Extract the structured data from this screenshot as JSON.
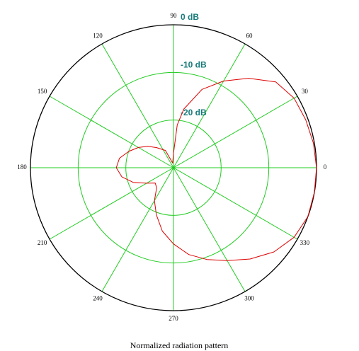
{
  "chart_data": {
    "type": "polar",
    "title": "Normalized radiation pattern",
    "theta": [
      0,
      10,
      20,
      30,
      40,
      50,
      60,
      70,
      80,
      85,
      90,
      100,
      115,
      130,
      140,
      150,
      160,
      170,
      180,
      190,
      200,
      210,
      220,
      230,
      240,
      250,
      260,
      270,
      280,
      290,
      300,
      310,
      320,
      330,
      340,
      350,
      360
    ],
    "r": [
      0,
      -0.2,
      -0.5,
      -0.8,
      -2,
      -5.5,
      -9,
      -12.5,
      -17.5,
      -21,
      -27,
      -29,
      -26,
      -24.5,
      -23,
      -21.5,
      -20,
      -18.5,
      -18,
      -19,
      -21,
      -23.5,
      -25,
      -24.5,
      -22,
      -19.5,
      -16.5,
      -14,
      -11.5,
      -9.5,
      -7.5,
      -5,
      -2.5,
      -0.8,
      0,
      0,
      0
    ],
    "color": "#dd0000",
    "grid_color": "#22cc22",
    "rlim": [
      -30,
      0
    ],
    "rticks": [
      {
        "value": 0,
        "label": "0 dB"
      },
      {
        "value": -10,
        "label": "-10 dB"
      },
      {
        "value": -20,
        "label": "-20 dB"
      }
    ],
    "thetaticks": [
      0,
      30,
      60,
      90,
      120,
      150,
      180,
      210,
      240,
      270,
      300,
      330
    ]
  }
}
